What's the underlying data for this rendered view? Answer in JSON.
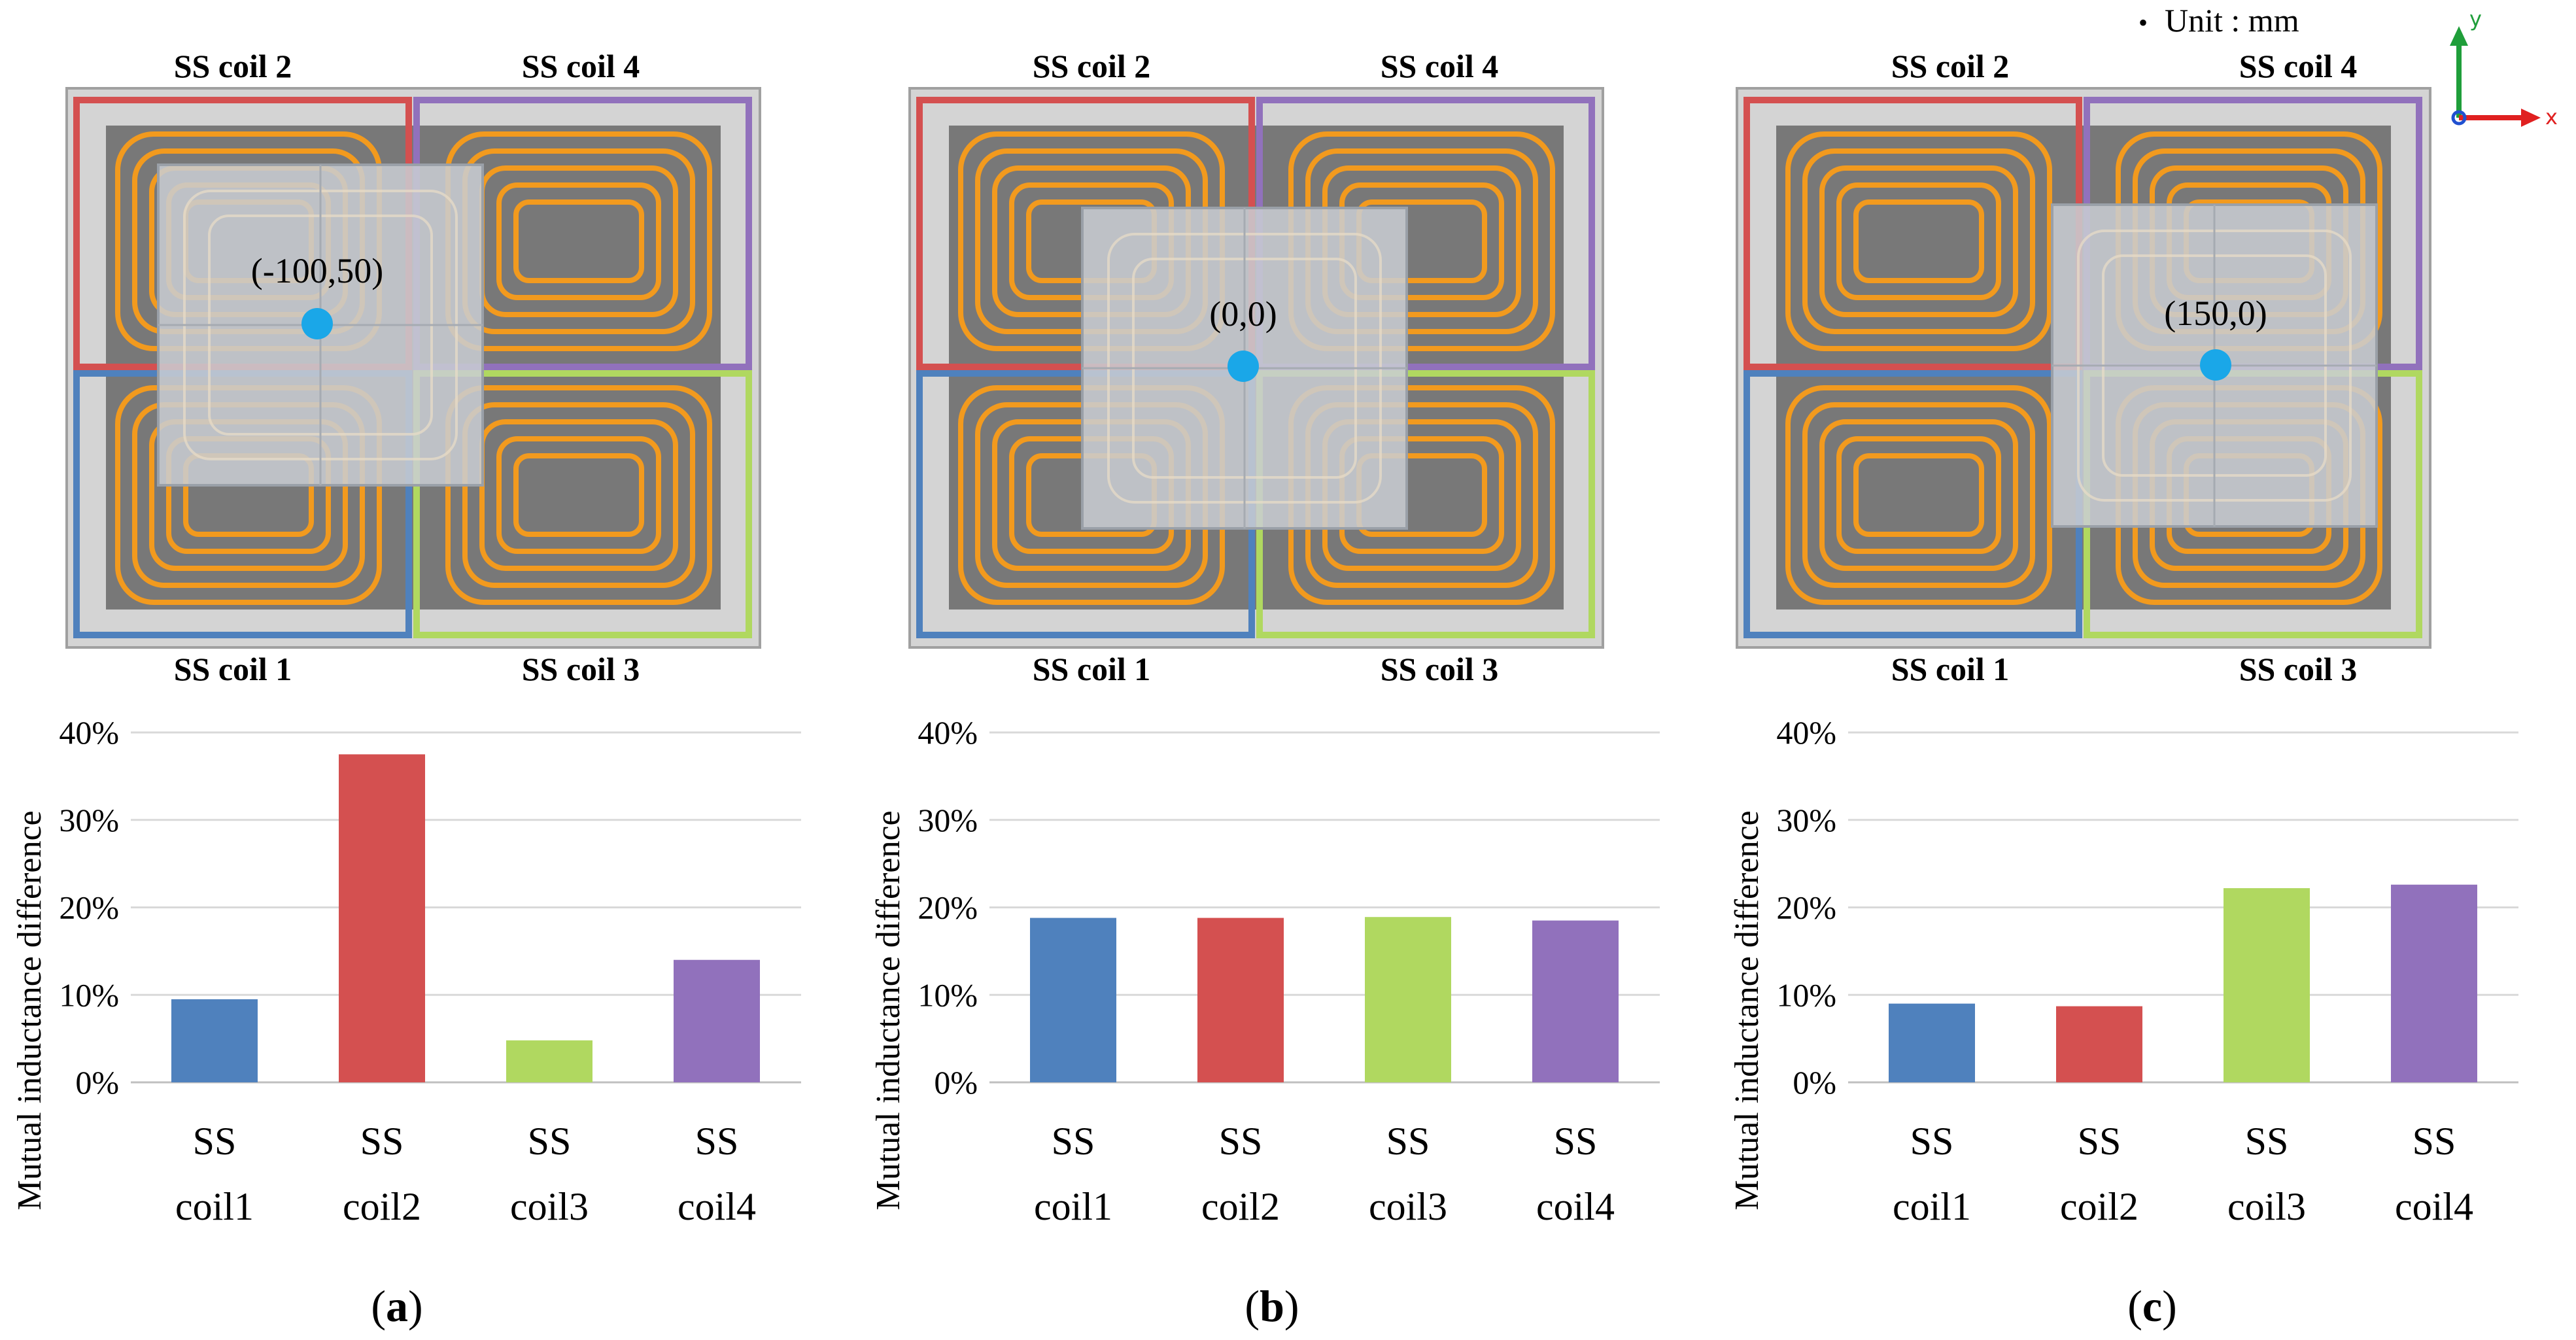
{
  "unit_note": "Unit : mm",
  "triad": {
    "x_label": "x",
    "y_label": "y"
  },
  "colors": {
    "coil1": "#4f81bd",
    "coil2": "#d45050",
    "coil3": "#b0d860",
    "coil4": "#9171bc",
    "wire": "#f29a1e",
    "plate": "#d4d4d4",
    "core": "#787878",
    "receiver": "#c9cdd3",
    "marker": "#1aa7e8"
  },
  "panels": [
    {
      "panel_label": "a",
      "receiver_position": "(-100,50)",
      "coils": {
        "top_left": "SS coil 2",
        "top_right": "SS coil 4",
        "bottom_left": "SS coil 1",
        "bottom_right": "SS coil 3"
      }
    },
    {
      "panel_label": "b",
      "receiver_position": "(0,0)",
      "coils": {
        "top_left": "SS coil 2",
        "top_right": "SS coil 4",
        "bottom_left": "SS coil 1",
        "bottom_right": "SS coil 3"
      }
    },
    {
      "panel_label": "c",
      "receiver_position": "(150,0)",
      "coils": {
        "top_left": "SS coil 2",
        "top_right": "SS coil 4",
        "bottom_left": "SS coil 1",
        "bottom_right": "SS coil 3"
      }
    }
  ],
  "chart_data": [
    {
      "type": "bar",
      "title": "",
      "xlabel": "",
      "ylabel": "Mutual inductance difference",
      "categories": [
        [
          "SS",
          "coil1"
        ],
        [
          "SS",
          "coil2"
        ],
        [
          "SS",
          "coil3"
        ],
        [
          "SS",
          "coil4"
        ]
      ],
      "values": [
        9.5,
        37.5,
        4.8,
        14.0
      ],
      "ylim": [
        0,
        40
      ],
      "yticks": [
        "0%",
        "10%",
        "20%",
        "30%",
        "40%"
      ],
      "grid": true
    },
    {
      "type": "bar",
      "title": "",
      "xlabel": "",
      "ylabel": "Mutual inductance difference",
      "categories": [
        [
          "SS",
          "coil1"
        ],
        [
          "SS",
          "coil2"
        ],
        [
          "SS",
          "coil3"
        ],
        [
          "SS",
          "coil4"
        ]
      ],
      "values": [
        18.8,
        18.8,
        18.9,
        18.5
      ],
      "ylim": [
        0,
        40
      ],
      "yticks": [
        "0%",
        "10%",
        "20%",
        "30%",
        "40%"
      ],
      "grid": true
    },
    {
      "type": "bar",
      "title": "",
      "xlabel": "",
      "ylabel": "Mutual inductance difference",
      "categories": [
        [
          "SS",
          "coil1"
        ],
        [
          "SS",
          "coil2"
        ],
        [
          "SS",
          "coil3"
        ],
        [
          "SS",
          "coil4"
        ]
      ],
      "values": [
        9.0,
        8.7,
        22.2,
        22.6
      ],
      "ylim": [
        0,
        40
      ],
      "yticks": [
        "0%",
        "10%",
        "20%",
        "30%",
        "40%"
      ],
      "grid": true
    }
  ]
}
